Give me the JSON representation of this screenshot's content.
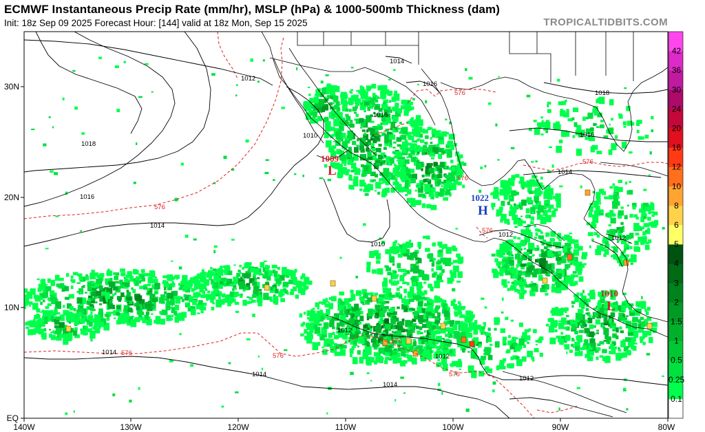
{
  "header": {
    "title": "ECMWF Instantaneous Precip Rate (mm/hr), MSLP (hPa) & 1000-500mb Thickness (dam)",
    "subtitle": "Init: 18z Sep 09 2025   Forecast Hour: [144]   valid at 18z Mon, Sep 15 2025",
    "brand": "TROPICALTIDBITS.COM"
  },
  "axes": {
    "lon_labels": [
      "140W",
      "130W",
      "120W",
      "110W",
      "100W",
      "90W",
      "80W"
    ],
    "lat_labels": [
      "EQ",
      "10N",
      "20N",
      "30N"
    ]
  },
  "legend": {
    "levels": [
      "0.1",
      "0.25",
      "0.5",
      "1",
      "1.5",
      "2",
      "3",
      "4",
      "5",
      "6",
      "8",
      "10",
      "12",
      "16",
      "20",
      "24",
      "30",
      "36",
      "42"
    ],
    "colors": [
      "#00ff4c",
      "#00e13f",
      "#00c834",
      "#00b02c",
      "#009a24",
      "#00821c",
      "#006a15",
      "#005210",
      "#ffff66",
      "#ffd24a",
      "#ffa430",
      "#ff6f1c",
      "#ff3a14",
      "#e0101e",
      "#c4083a",
      "#ad0a6a",
      "#c01aa0",
      "#dd2ac8",
      "#ff46ee"
    ]
  },
  "contour_labels": {
    "mslp": [
      "1012",
      "1014",
      "1016",
      "1018",
      "1010",
      "1016",
      "1014",
      "1018",
      "1016",
      "1014",
      "1012",
      "1010",
      "1012",
      "1014",
      "1016",
      "1012",
      "1014",
      "1014",
      "1012",
      "1012"
    ],
    "thickness": [
      "576",
      "576",
      "576",
      "576",
      "576",
      "576",
      "576",
      "576",
      "576"
    ]
  },
  "pressure_centers": [
    {
      "value": "1009",
      "letter": "L",
      "color": "#d0202a"
    },
    {
      "value": "1022",
      "letter": "H",
      "color": "#1a3fbf"
    },
    {
      "value": "1010",
      "letter": "L",
      "color": "#d0202a"
    }
  ],
  "colors": {
    "land_border": "#000000",
    "mslp_contour": "#000000",
    "thickness_contour": "#e02020",
    "high_color": "#1a3fbf",
    "low_color": "#d0202a",
    "brand_gray": "#8a8a8a"
  }
}
